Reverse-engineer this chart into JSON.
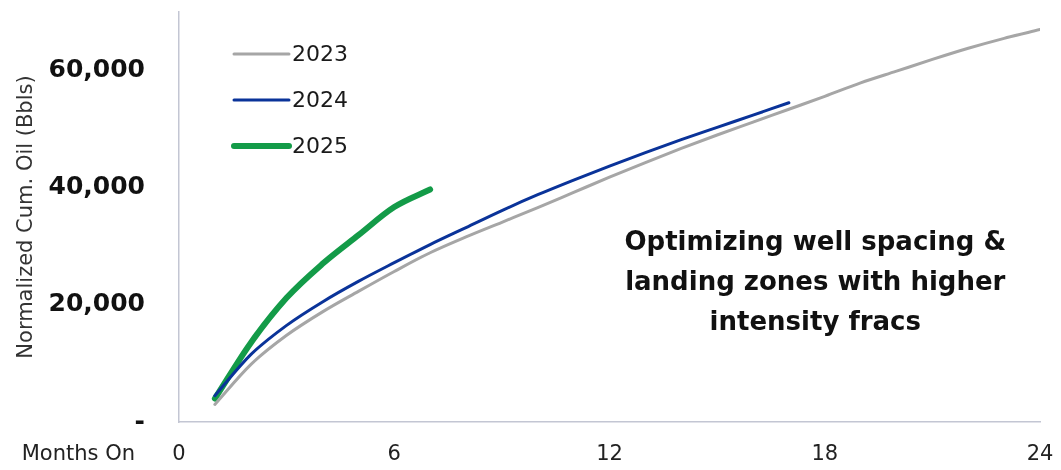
{
  "chart_data": {
    "type": "line",
    "xlabel": "Months On",
    "ylabel": "Normalized Cum. Oil (Bbls)",
    "xlim": [
      0,
      24
    ],
    "xticks": [
      0,
      6,
      12,
      18,
      24
    ],
    "ylim": [
      0,
      70000
    ],
    "yticks": [
      {
        "value": 0,
        "label": "-"
      },
      {
        "value": 20000,
        "label": "20,000"
      },
      {
        "value": 40000,
        "label": "40,000"
      },
      {
        "value": 60000,
        "label": "60,000"
      }
    ],
    "legend": "top left",
    "marker": "none",
    "series": [
      {
        "name": "2023",
        "color": "#a6a6a6",
        "x": [
          1,
          2,
          3,
          4,
          5,
          6,
          7,
          8,
          9,
          10,
          11,
          12,
          13,
          14,
          15,
          16,
          17,
          18,
          19,
          20,
          21,
          22,
          23,
          24
        ],
        "values": [
          3000,
          9800,
          14800,
          18800,
          22300,
          25700,
          28900,
          31600,
          34100,
          36600,
          39200,
          41800,
          44300,
          46700,
          49000,
          51200,
          53400,
          55600,
          57900,
          59900,
          61900,
          63800,
          65500,
          67000
        ]
      },
      {
        "name": "2024",
        "color": "#0a3399",
        "x": [
          1,
          2,
          3,
          4,
          5,
          6,
          7,
          8,
          9,
          10,
          11,
          12,
          13,
          14,
          15,
          16,
          17
        ],
        "values": [
          4500,
          11500,
          16500,
          20500,
          24000,
          27200,
          30300,
          33200,
          36100,
          38800,
          41300,
          43700,
          46000,
          48200,
          50300,
          52400,
          54500
        ]
      },
      {
        "name": "2025",
        "color": "#139b48",
        "x": [
          1,
          2,
          3,
          4,
          5,
          6,
          7
        ],
        "values": [
          4000,
          13500,
          21200,
          27000,
          31900,
          36700,
          39700
        ]
      }
    ],
    "annotations": [
      "Optimizing well spacing & landing zones with higher intensity fracs"
    ]
  }
}
